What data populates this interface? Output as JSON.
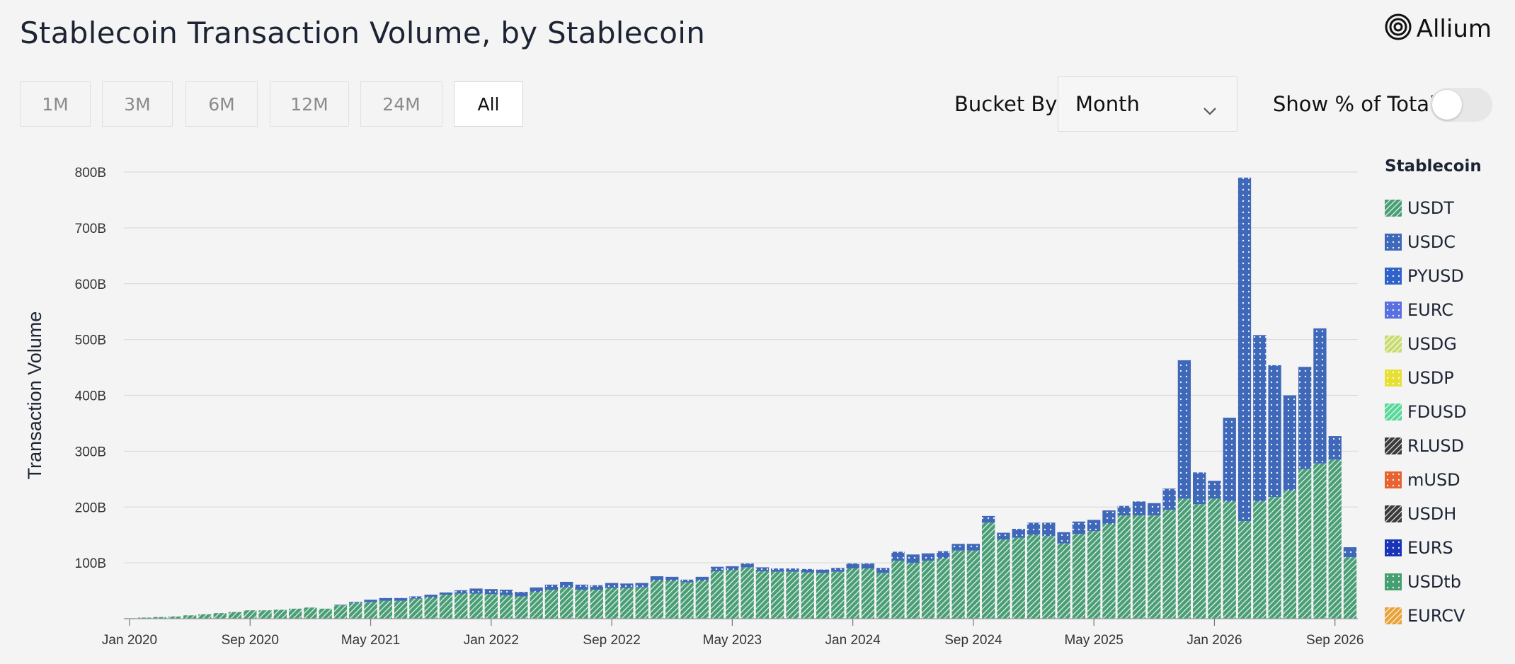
{
  "header": {
    "title": "Stablecoin Transaction Volume, by Stablecoin",
    "brand": "Allium"
  },
  "controls": {
    "ranges": [
      "1M",
      "3M",
      "6M",
      "12M",
      "24M",
      "All"
    ],
    "active_range": "All",
    "bucket_label": "Bucket By",
    "bucket_value": "Month",
    "pct_label": "Show % of Total",
    "pct_enabled": false
  },
  "legend": {
    "title": "Stablecoin",
    "items": [
      {
        "name": "USDT",
        "color": "#4a9e76",
        "pattern": "diag"
      },
      {
        "name": "USDC",
        "color": "#3f68b9",
        "pattern": "dots"
      },
      {
        "name": "PYUSD",
        "color": "#2f62c8",
        "pattern": "dots"
      },
      {
        "name": "EURC",
        "color": "#5a6fe0",
        "pattern": "dots"
      },
      {
        "name": "USDG",
        "color": "#c8dc72",
        "pattern": "diag"
      },
      {
        "name": "USDP",
        "color": "#e6e034",
        "pattern": "dots"
      },
      {
        "name": "FDUSD",
        "color": "#58d89a",
        "pattern": "diag"
      },
      {
        "name": "RLUSD",
        "color": "#3a3a3a",
        "pattern": "diag"
      },
      {
        "name": "mUSD",
        "color": "#e86332",
        "pattern": "dots"
      },
      {
        "name": "USDH",
        "color": "#3a3a3a",
        "pattern": "diag"
      },
      {
        "name": "EURS",
        "color": "#1a34b8",
        "pattern": "dots"
      },
      {
        "name": "USDtb",
        "color": "#44a070",
        "pattern": "dots"
      },
      {
        "name": "EURCV",
        "color": "#e8a23a",
        "pattern": "diag"
      }
    ]
  },
  "chart_data": {
    "type": "bar",
    "stacked": true,
    "ylabel": "Transaction Volume",
    "yticks": [
      "100B",
      "200B",
      "300B",
      "400B",
      "500B",
      "600B",
      "700B",
      "800B"
    ],
    "ylim": [
      0,
      800
    ],
    "unit": "B",
    "grid": true,
    "legend_position": "right",
    "xtick_labels": [
      {
        "label": "Jan 2020",
        "index": 0
      },
      {
        "label": "Sep 2020",
        "index": 8
      },
      {
        "label": "May 2021",
        "index": 16
      },
      {
        "label": "Jan 2022",
        "index": 24
      },
      {
        "label": "Sep 2022",
        "index": 32
      },
      {
        "label": "May 2023",
        "index": 40
      },
      {
        "label": "Jan 2024",
        "index": 48
      },
      {
        "label": "Sep 2024",
        "index": 56
      },
      {
        "label": "May 2025",
        "index": 64
      },
      {
        "label": "Jan 2026",
        "index": 72
      },
      {
        "label": "Sep 2026",
        "index": 80
      }
    ],
    "series": [
      {
        "name": "USDT",
        "values": [
          1,
          2,
          3,
          4,
          6,
          8,
          10,
          12,
          15,
          15,
          16,
          18,
          20,
          18,
          24,
          28,
          30,
          32,
          32,
          36,
          38,
          43,
          45,
          45,
          44,
          42,
          40,
          48,
          52,
          56,
          52,
          52,
          55,
          55,
          56,
          68,
          68,
          65,
          68,
          85,
          87,
          92,
          85,
          84,
          84,
          83,
          82,
          84,
          90,
          90,
          82,
          104,
          100,
          104,
          108,
          122,
          122,
          172,
          142,
          145,
          150,
          148,
          135,
          152,
          157,
          170,
          185,
          185,
          185,
          195,
          215,
          205,
          215,
          210,
          175,
          210,
          218,
          230,
          268,
          278,
          285,
          110
        ]
      },
      {
        "name": "USDC",
        "values": [
          0,
          0,
          0,
          0,
          0,
          0,
          0,
          0,
          0,
          0,
          0,
          0,
          0,
          0,
          1,
          2,
          4,
          5,
          5,
          4,
          5,
          4,
          6,
          9,
          9,
          10,
          8,
          8,
          9,
          10,
          9,
          8,
          9,
          8,
          8,
          8,
          7,
          5,
          7,
          8,
          7,
          7,
          7,
          6,
          6,
          6,
          6,
          7,
          9,
          9,
          9,
          16,
          15,
          13,
          13,
          12,
          12,
          12,
          12,
          16,
          22,
          24,
          20,
          22,
          20,
          24,
          17,
          25,
          22,
          38,
          248,
          57,
          32,
          150,
          615,
          298,
          236,
          170,
          183,
          242,
          42,
          18
        ]
      }
    ]
  }
}
